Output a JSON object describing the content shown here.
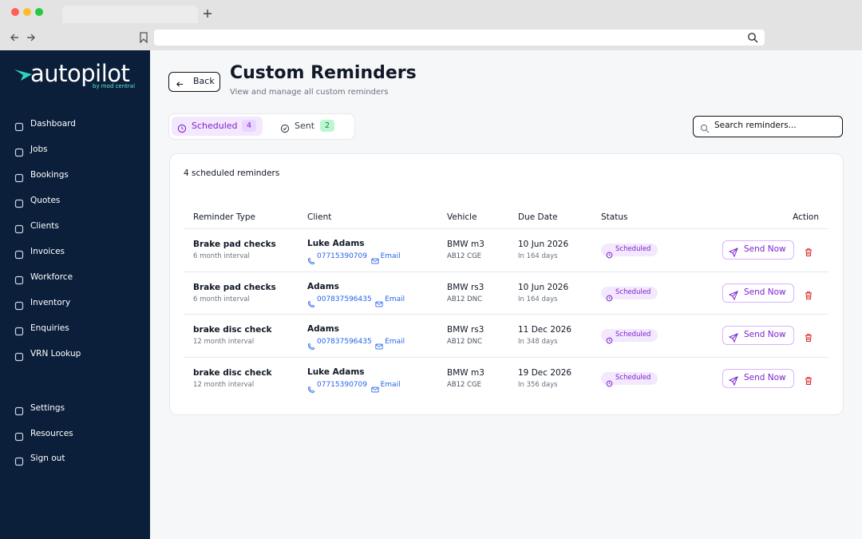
{
  "sidebar": {
    "brand": "autopilot",
    "tagline": "by mod central",
    "nav": [
      "Dashboard",
      "Jobs",
      "Bookings",
      "Quotes",
      "Clients",
      "Invoices",
      "Workforce",
      "Inventory",
      "Enquiries",
      "VRN Lookup"
    ],
    "footer_nav": [
      "Settings",
      "Resources",
      "Sign out"
    ]
  },
  "header": {
    "back": "Back",
    "title": "Custom Reminders",
    "subtitle": "View and manage all custom reminders"
  },
  "tabs": [
    {
      "label": "Scheduled",
      "count": 4
    },
    {
      "label": "Sent",
      "count": 2
    }
  ],
  "search_placeholder": "Search reminders...",
  "table": {
    "summary": "4 scheduled reminders",
    "columns": [
      "Reminder Type",
      "Client",
      "Vehicle",
      "Due Date",
      "Status",
      "Action"
    ],
    "rows": [
      {
        "type": "Brake pad checks",
        "interval": "6 month interval",
        "client": "Luke Adams",
        "phone": "07715390709",
        "email": "Email",
        "vehicle": "BMW m3",
        "reg": "AB12 CGE",
        "due": "10 Jun 2026",
        "due_in": "In 164 days",
        "status": "Scheduled",
        "action": "Send Now"
      },
      {
        "type": "Brake pad checks",
        "interval": "6 month interval",
        "client": "Adams",
        "phone": "007837596435",
        "email": "Email",
        "vehicle": "BMW rs3",
        "reg": "AB12 DNC",
        "due": "10 Jun 2026",
        "due_in": "In 164 days",
        "status": "Scheduled",
        "action": "Send Now"
      },
      {
        "type": "brake disc check",
        "interval": "12 month interval",
        "client": "Adams",
        "phone": "007837596435",
        "email": "Email",
        "vehicle": "BMW rs3",
        "reg": "AB12 DNC",
        "due": "11 Dec 2026",
        "due_in": "In 348 days",
        "status": "Scheduled",
        "action": "Send Now"
      },
      {
        "type": "brake disc check",
        "interval": "12 month interval",
        "client": "Luke Adams",
        "phone": "07715390709",
        "email": "Email",
        "vehicle": "BMW m3",
        "reg": "AB12 CGE",
        "due": "19 Dec 2026",
        "due_in": "In 356 days",
        "status": "Scheduled",
        "action": "Send Now"
      }
    ]
  }
}
